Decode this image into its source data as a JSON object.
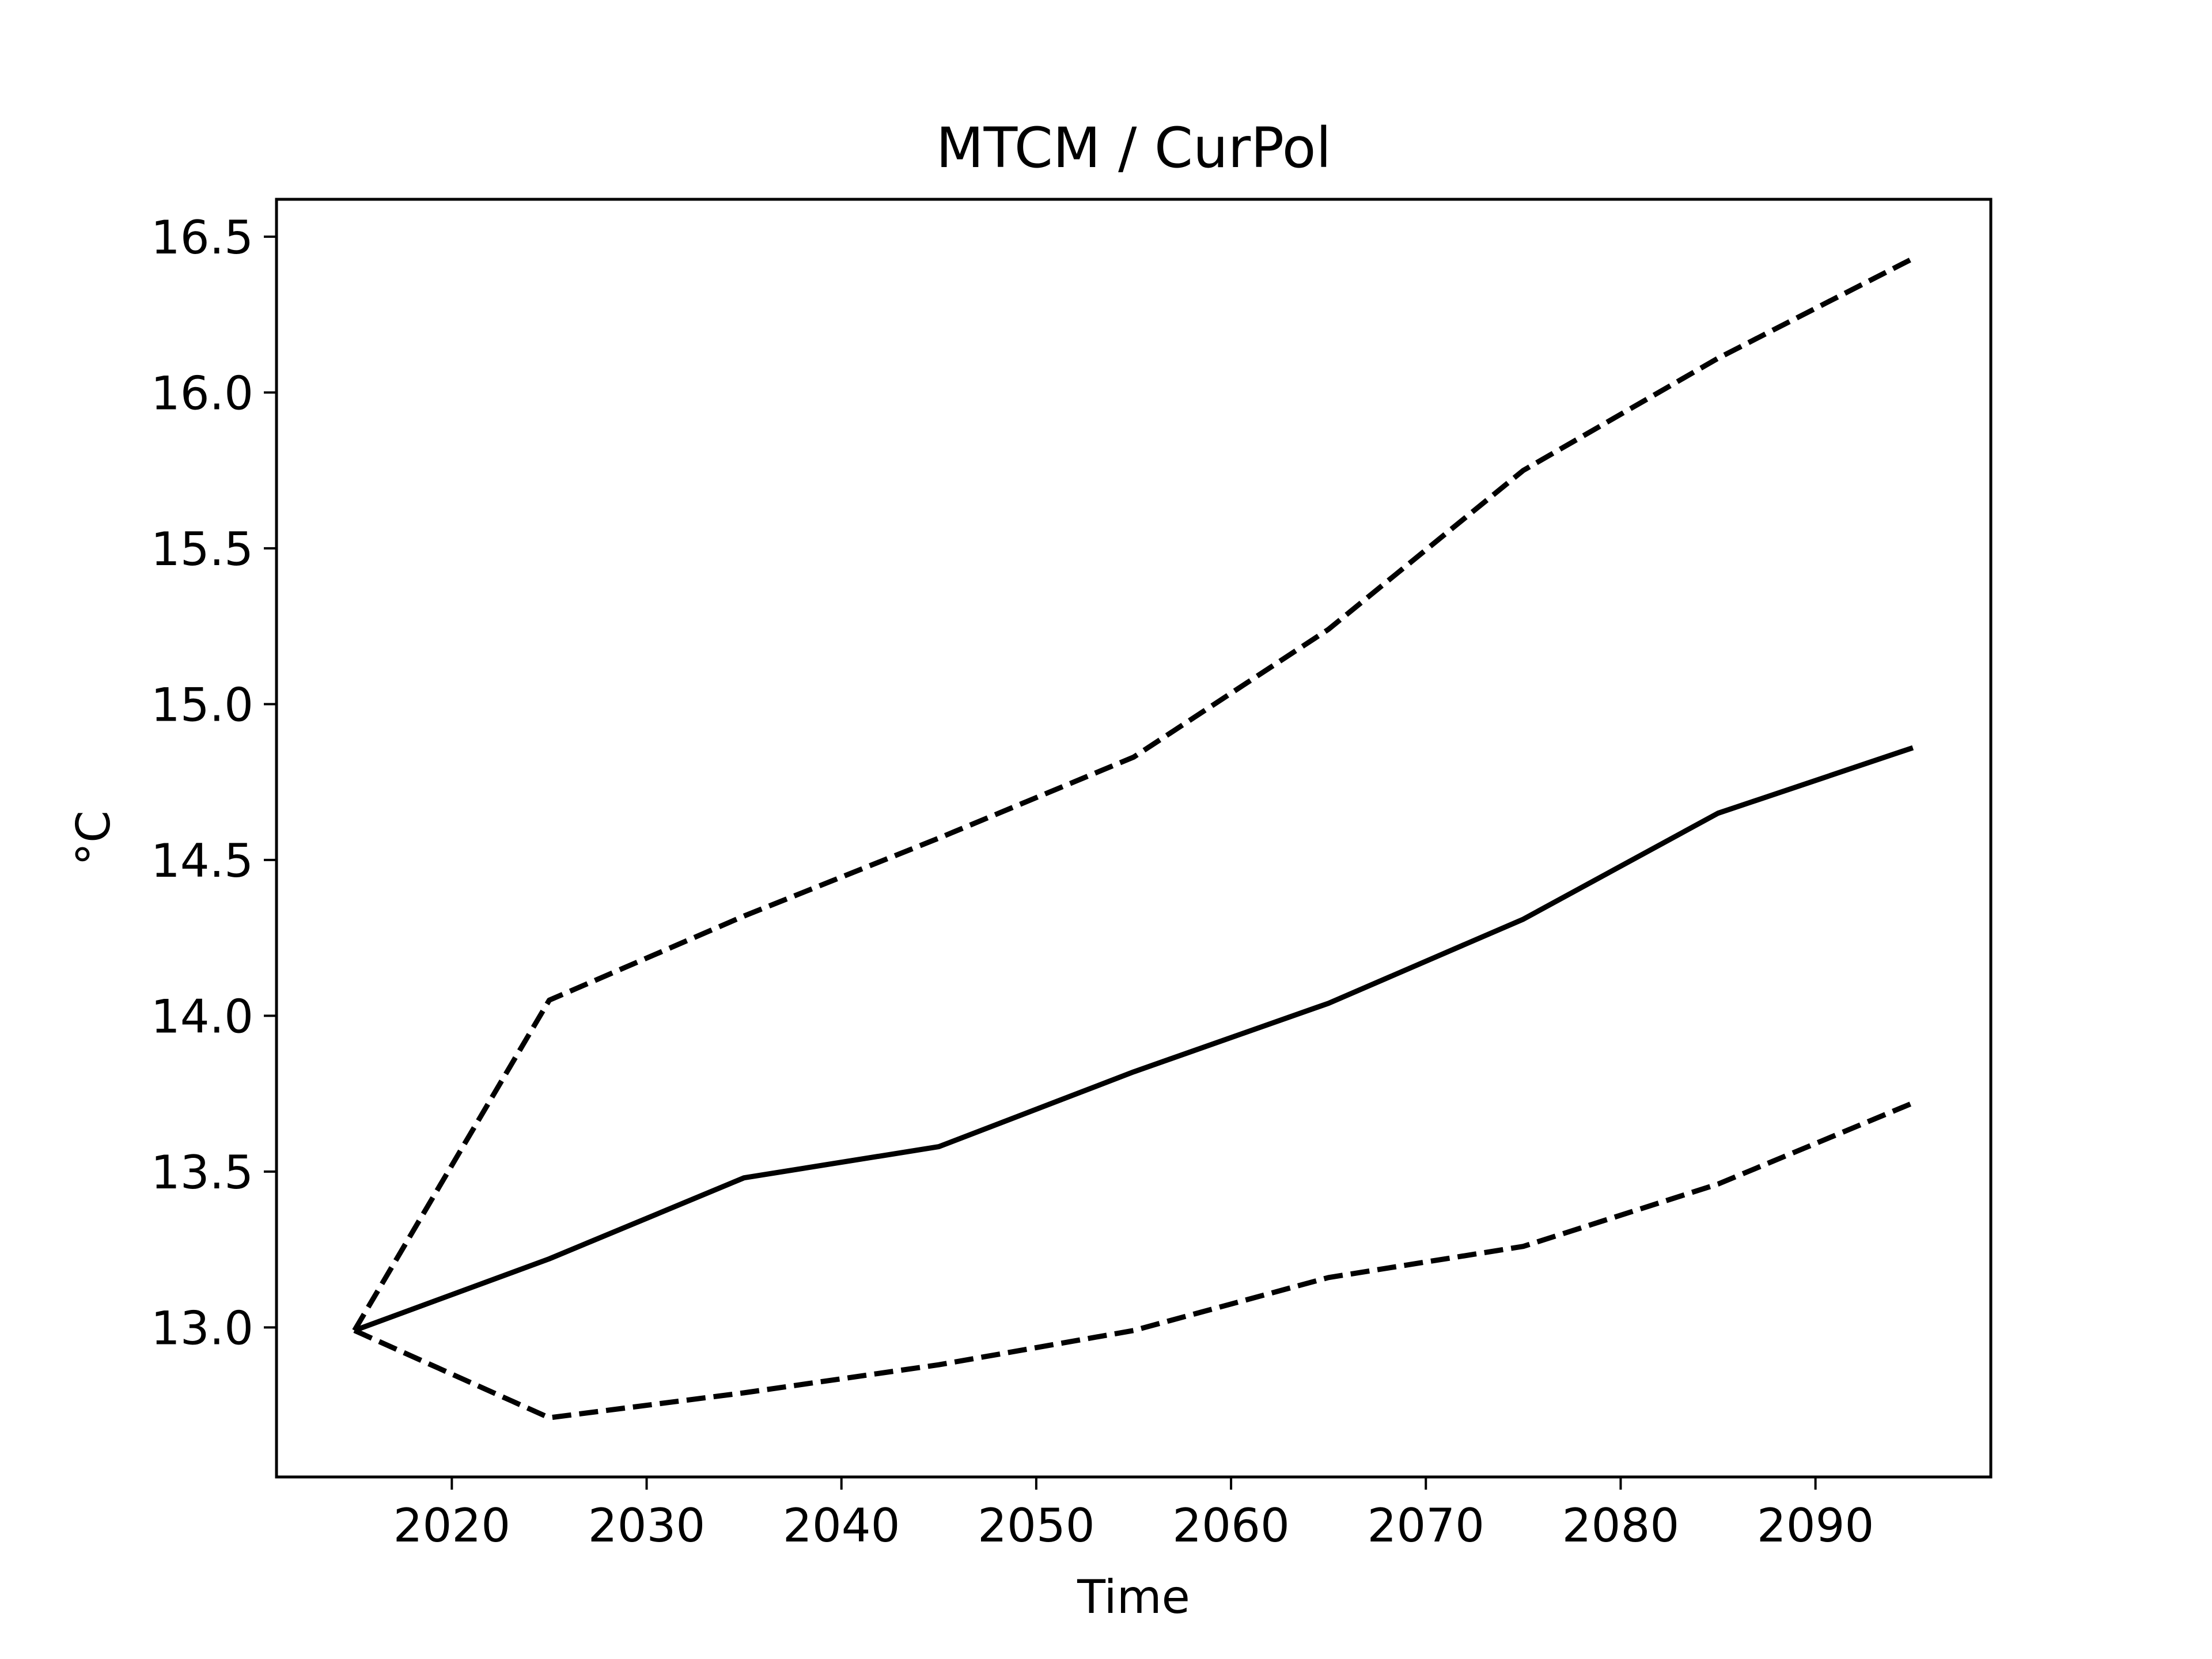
{
  "chart_data": {
    "type": "line",
    "title": "MTCM / CurPol",
    "xlabel": "Time",
    "ylabel": "°C",
    "xlim": [
      2011,
      2099
    ],
    "ylim": [
      12.52,
      16.62
    ],
    "xticks": [
      2020,
      2030,
      2040,
      2050,
      2060,
      2070,
      2080,
      2090
    ],
    "xtick_labels": [
      "2020",
      "2030",
      "2040",
      "2050",
      "2060",
      "2070",
      "2080",
      "2090"
    ],
    "yticks": [
      13.0,
      13.5,
      14.0,
      14.5,
      15.0,
      15.5,
      16.0,
      16.5
    ],
    "ytick_labels": [
      "13.0",
      "13.5",
      "14.0",
      "14.5",
      "15.0",
      "15.5",
      "16.0",
      "16.5"
    ],
    "grid": false,
    "x": [
      2015,
      2025,
      2035,
      2045,
      2055,
      2065,
      2075,
      2085,
      2095
    ],
    "series": [
      {
        "style": "solid",
        "color": "#000000",
        "values": [
          12.99,
          13.22,
          13.48,
          13.58,
          13.82,
          14.04,
          14.31,
          14.65,
          14.86
        ]
      },
      {
        "style": "dashed",
        "color": "#000000",
        "values": [
          12.99,
          14.05,
          14.32,
          14.57,
          14.83,
          15.24,
          15.75,
          16.11,
          16.43
        ]
      },
      {
        "style": "dashed",
        "color": "#000000",
        "values": [
          12.99,
          12.71,
          12.79,
          12.88,
          12.99,
          13.16,
          13.26,
          13.46,
          13.72
        ]
      }
    ]
  }
}
